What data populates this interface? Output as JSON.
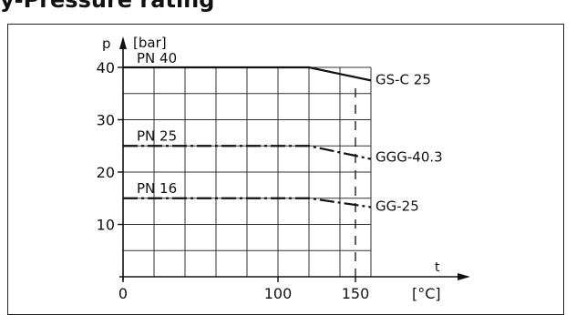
{
  "heading": "y-Pressure rating",
  "chart_data": {
    "type": "line",
    "ylabel": "p",
    "yunit": "[bar]",
    "xlabel": "t",
    "xunit": "[°C]",
    "xlim": [
      0,
      160
    ],
    "ylim": [
      0,
      40
    ],
    "x_ticks": [
      "0",
      "100",
      "150"
    ],
    "y_ticks": [
      "10",
      "20",
      "30",
      "40"
    ],
    "grid": true,
    "reference_line_x": 150,
    "series": [
      {
        "label": "PN 40",
        "end_label": "GS-C 25",
        "line_style": "solid",
        "points": [
          [
            0,
            40
          ],
          [
            120,
            40
          ],
          [
            160,
            37.5
          ]
        ]
      },
      {
        "label": "PN 25",
        "end_label": "GGG-40.3",
        "line_style": "dash-dot",
        "points": [
          [
            0,
            25
          ],
          [
            120,
            25
          ],
          [
            160,
            22.5
          ]
        ]
      },
      {
        "label": "PN 16",
        "end_label": "GG-25",
        "line_style": "dash-dot",
        "points": [
          [
            0,
            15
          ],
          [
            120,
            15
          ],
          [
            160,
            13.3
          ]
        ]
      }
    ]
  }
}
